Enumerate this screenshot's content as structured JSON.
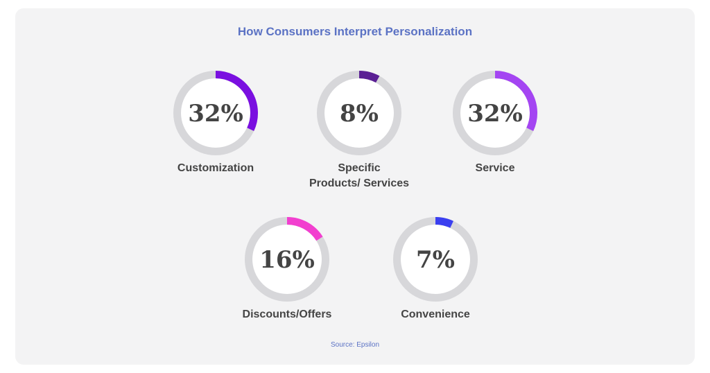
{
  "chart_data": {
    "type": "pie",
    "title": "How Consumers Interpret Personalization",
    "source": "Source: Epsilon",
    "unit": "%",
    "items": [
      {
        "label": [
          "Customization"
        ],
        "value": 32,
        "display": "32%",
        "color": "#7a0fe0"
      },
      {
        "label": [
          "Specific",
          "Products/ Services"
        ],
        "value": 8,
        "display": "8%",
        "color": "#5a1f94"
      },
      {
        "label": [
          "Service"
        ],
        "value": 32,
        "display": "32%",
        "color": "#a445f2"
      },
      {
        "label": [
          "Discounts/Offers"
        ],
        "value": 16,
        "display": "16%",
        "color": "#f23fcf"
      },
      {
        "label": [
          "Convenience"
        ],
        "value": 7,
        "display": "7%",
        "color": "#3a3ff0"
      }
    ],
    "track_color": "#d7d7da",
    "center_color": "#ffffff"
  }
}
